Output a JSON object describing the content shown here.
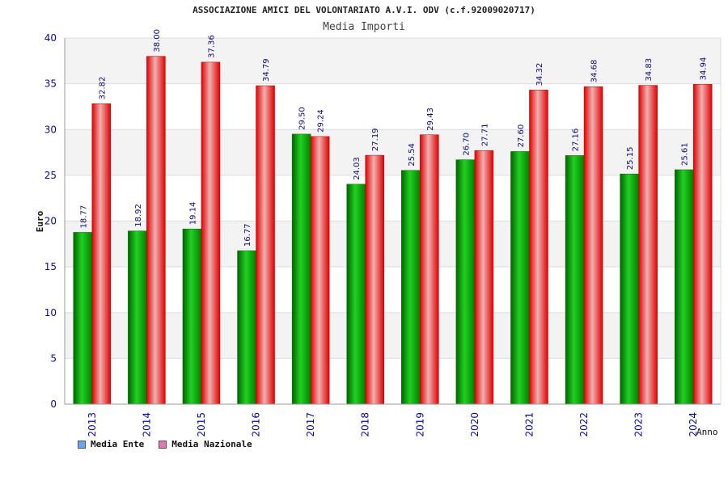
{
  "chart_data": {
    "type": "bar",
    "title": "ASSOCIAZIONE AMICI DEL VOLONTARIATO A.V.I. ODV (c.f.92009020717)",
    "subtitle": "Media Importi",
    "ylabel": "Euro",
    "xlabel": "Anno",
    "ylim": [
      0,
      40
    ],
    "yticks": [
      0,
      5,
      10,
      15,
      20,
      25,
      30,
      35,
      40
    ],
    "grid": true,
    "legend_position": "bottom-left",
    "categories": [
      "2013",
      "2014",
      "2015",
      "2016",
      "2017",
      "2018",
      "2019",
      "2020",
      "2021",
      "2022",
      "2023",
      "2024"
    ],
    "series": [
      {
        "name": "Media Ente",
        "color": "#00b400",
        "legend_color": "#6aa8e8",
        "values": [
          18.77,
          18.92,
          19.14,
          16.77,
          29.5,
          24.03,
          25.54,
          26.7,
          27.6,
          27.16,
          25.15,
          25.61
        ],
        "labels": [
          "18.77",
          "18.92",
          "19.14",
          "16.77",
          "29.50",
          "24.03",
          "25.54",
          "26.70",
          "27.60",
          "27.16",
          "25.15",
          "25.61"
        ]
      },
      {
        "name": "Media Nazionale",
        "color": "#f01010",
        "legend_color": "#e07ab4",
        "values": [
          32.82,
          38.0,
          37.36,
          34.79,
          29.24,
          27.19,
          29.43,
          27.71,
          34.32,
          34.68,
          34.83,
          34.94
        ],
        "labels": [
          "32.82",
          "38.00",
          "37.36",
          "34.79",
          "29.24",
          "27.19",
          "29.43",
          "27.71",
          "34.32",
          "34.68",
          "34.83",
          "34.94"
        ]
      }
    ]
  }
}
